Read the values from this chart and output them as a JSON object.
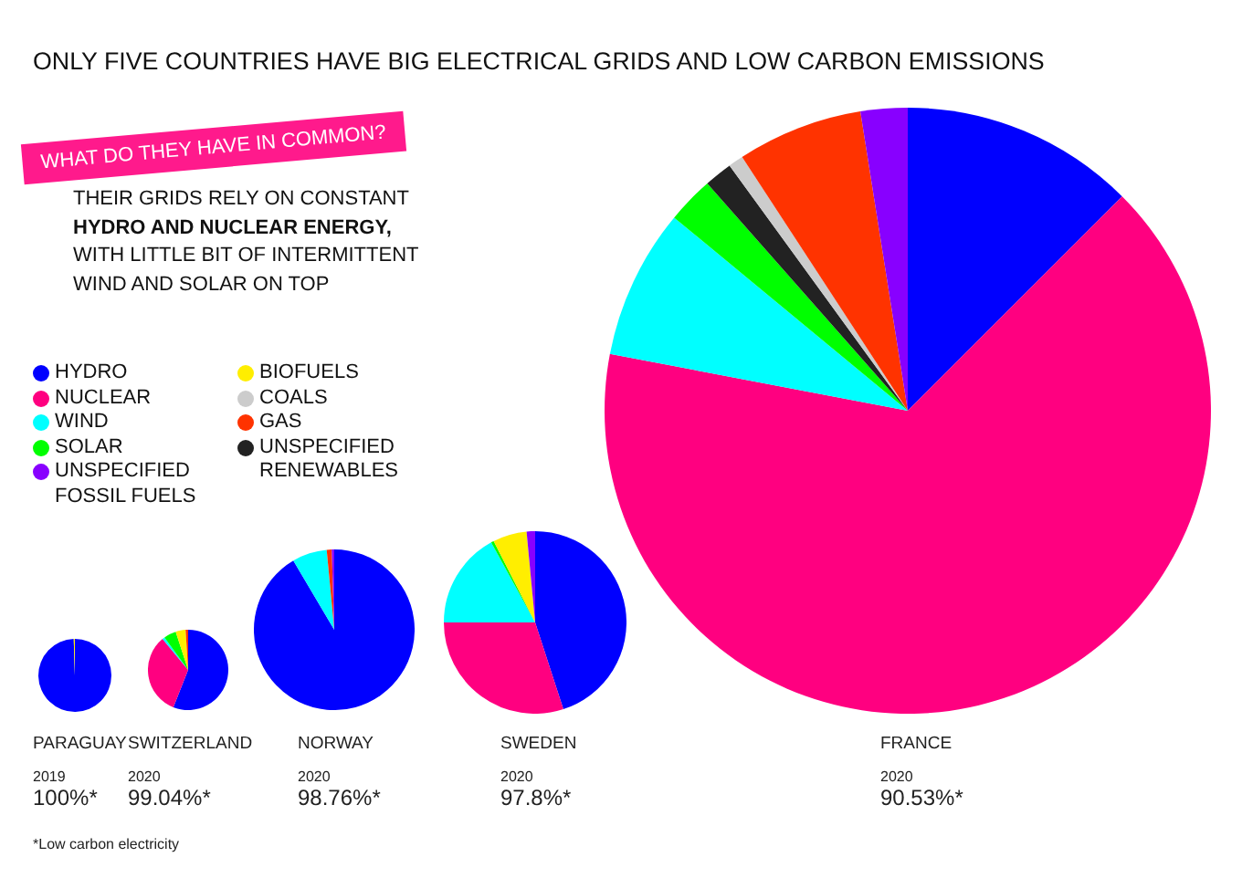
{
  "chart_data": [
    {
      "type": "pie",
      "title": "PARAGUAY",
      "subtitle": "2019",
      "annotations": [
        "100%*"
      ],
      "categories": [
        "HYDRO",
        "NUCLEAR",
        "WIND",
        "SOLAR",
        "BIOFUELS",
        "UNSPECIFIED RENEWABLES",
        "COALS",
        "GAS",
        "UNSPECIFIED FOSSIL FUELS"
      ],
      "values": [
        99.5,
        0,
        0,
        0,
        0.5,
        0,
        0,
        0,
        0
      ],
      "colors": [
        "#0000ff",
        "#ff0080",
        "#00ffff",
        "#00ff00",
        "#ffee00",
        "#222222",
        "#cccccc",
        "#ff3300",
        "#8800ff"
      ],
      "legend": "top right"
    },
    {
      "type": "pie",
      "title": "SWITZERLAND",
      "subtitle": "2020",
      "annotations": [
        "99.04%*"
      ],
      "categories": [
        null,
        null,
        null,
        null,
        null,
        null,
        null,
        null,
        null
      ],
      "values": [
        56,
        33,
        1,
        5,
        4,
        0,
        0,
        1,
        0
      ],
      "colors": [
        "#0000ff",
        "#ff0080",
        "#00ffff",
        "#00ff00",
        "#ffee00",
        "#222222",
        "#cccccc",
        "#ff3300",
        "#8800ff"
      ]
    },
    {
      "type": "pie",
      "title": "NORWAY",
      "subtitle": "2020",
      "annotations": [
        "98.76%*"
      ],
      "categories": [
        null,
        null,
        null,
        null,
        null,
        null,
        null,
        null,
        null
      ],
      "values": [
        91.5,
        0,
        7,
        0,
        0,
        0,
        0,
        1,
        0.5
      ],
      "colors": [
        "#0000ff",
        "#ff0080",
        "#00ffff",
        "#00ff00",
        "#ffee00",
        "#222222",
        "#cccccc",
        "#ff3300",
        "#8800ff"
      ]
    },
    {
      "type": "pie",
      "title": "SWEDEN",
      "subtitle": "2020",
      "annotations": [
        "97.8%*"
      ],
      "categories": [
        null,
        null,
        null,
        null,
        null,
        null,
        null,
        null,
        null
      ],
      "values": [
        45,
        30,
        17,
        0.5,
        6,
        0,
        0,
        0,
        1.5
      ],
      "colors": [
        "#0000ff",
        "#ff0080",
        "#00ffff",
        "#00ff00",
        "#ffee00",
        "#222222",
        "#cccccc",
        "#ff3300",
        "#8800ff"
      ]
    },
    {
      "type": "pie",
      "title": "FRANCE",
      "subtitle": "2020",
      "annotations": [
        "90.53%*",
        "ONLY FIVE COUNTRIES HAVE BIG ELECTRICAL GRIDS AND LOW CARBON EMISSIONS",
        "WHAT DO THEY HAVE IN COMMON?",
        "THEIR GRIDS RELY ON CONSTANT",
        "HYDRO AND NUCLEAR ENERGY,",
        "WITH LITTLE BIT OF INTERMITTENT",
        "WIND AND SOLAR ON TOP",
        "*Low carbon electricity"
      ],
      "categories": [
        null,
        null,
        null,
        null,
        null,
        null,
        null,
        null,
        null
      ],
      "values": [
        12.5,
        65.5,
        8,
        2.5,
        0,
        1.5,
        0.8,
        6.7,
        2.5
      ],
      "colors": [
        "#0000ff",
        "#ff0080",
        "#00ffff",
        "#00ff00",
        "#ffee00",
        "#222222",
        "#cccccc",
        "#ff3300",
        "#8800ff"
      ]
    }
  ]
}
